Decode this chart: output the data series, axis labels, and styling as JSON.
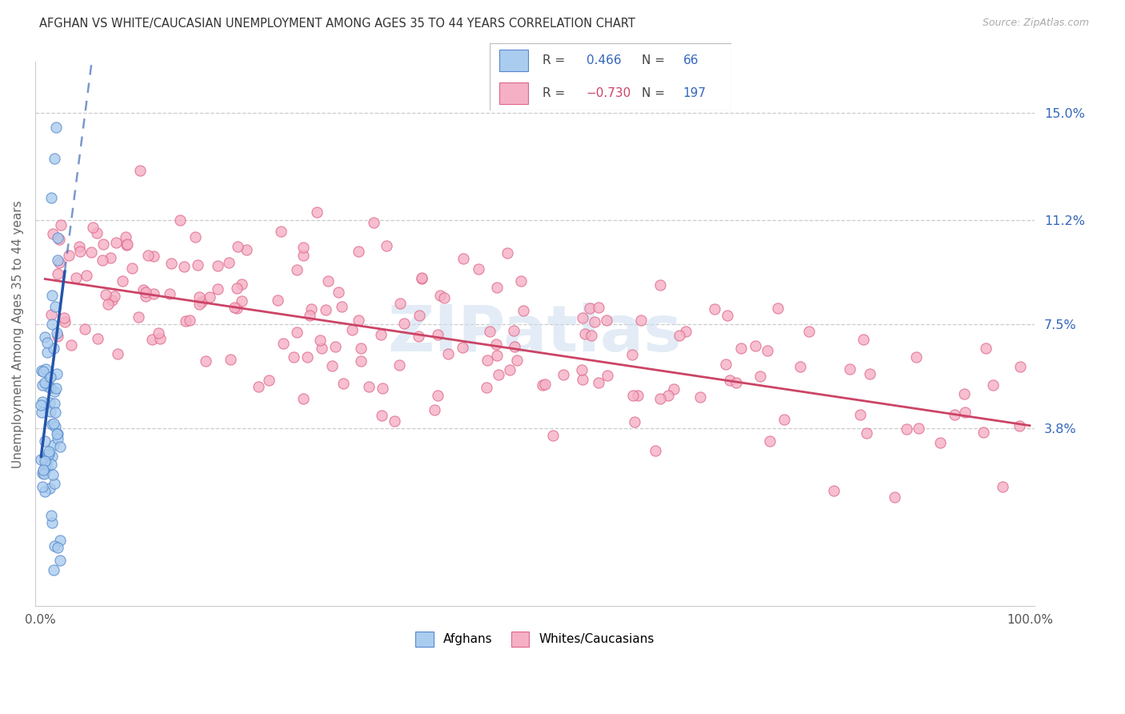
{
  "title": "AFGHAN VS WHITE/CAUCASIAN UNEMPLOYMENT AMONG AGES 35 TO 44 YEARS CORRELATION CHART",
  "source": "Source: ZipAtlas.com",
  "ylabel": "Unemployment Among Ages 35 to 44 years",
  "xlim": [
    -0.005,
    1.005
  ],
  "ylim": [
    -0.025,
    0.168
  ],
  "yticks": [
    0.038,
    0.075,
    0.112,
    0.15
  ],
  "ytick_labels": [
    "3.8%",
    "7.5%",
    "11.2%",
    "15.0%"
  ],
  "xtick_positions": [
    0.0,
    1.0
  ],
  "xtick_labels": [
    "0.0%",
    "100.0%"
  ],
  "afghan_fill": "#aaccee",
  "afghan_edge": "#5588cc",
  "caucasian_fill": "#f5b0c5",
  "caucasian_edge": "#dd6688",
  "trend_blue": "#2255aa",
  "trend_pink": "#cc4466",
  "watermark_color": "#ccddf0",
  "background": "#ffffff",
  "grid_color": "#cccccc",
  "title_color": "#333333",
  "label_color": "#666666",
  "right_tick_color": "#3366bb",
  "source_color": "#aaaaaa"
}
